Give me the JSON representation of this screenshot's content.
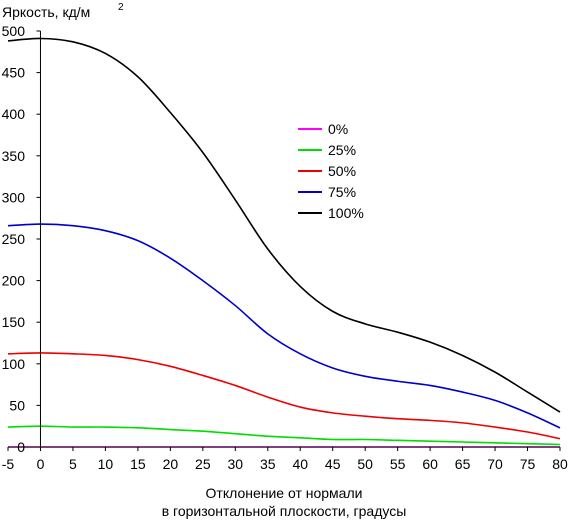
{
  "chart_data": {
    "type": "line",
    "ylabel": "Яркость, кд/м",
    "ylabel_superscript": "2",
    "xlabel_line1": "Отклонение от нормали",
    "xlabel_line2": "в горизонтальной плоскости, градусы",
    "xlim": [
      -5,
      80
    ],
    "ylim": [
      0,
      500
    ],
    "xticks": [
      "-5",
      "0",
      "5",
      "10",
      "15",
      "20",
      "25",
      "30",
      "35",
      "40",
      "45",
      "50",
      "55",
      "60",
      "65",
      "70",
      "75",
      "80"
    ],
    "yticks": [
      "0",
      "50",
      "100",
      "150",
      "200",
      "250",
      "300",
      "350",
      "400",
      "450",
      "500"
    ],
    "grid": false,
    "legend_position": "center-right",
    "series": [
      {
        "name": "0%",
        "color": "#ff00ff",
        "x": [
          -5,
          0,
          10,
          20,
          30,
          40,
          50,
          60,
          70,
          80
        ],
        "y": [
          0,
          0,
          0,
          0,
          0,
          0,
          0,
          0,
          0,
          0
        ]
      },
      {
        "name": "25%",
        "color": "#00dd00",
        "x": [
          -5,
          0,
          5,
          10,
          15,
          20,
          25,
          30,
          35,
          40,
          45,
          50,
          55,
          60,
          65,
          70,
          75,
          80
        ],
        "y": [
          24,
          25,
          24,
          24,
          23,
          21,
          19,
          16,
          13,
          11,
          9,
          9,
          8,
          7,
          6,
          5,
          4,
          3
        ]
      },
      {
        "name": "50%",
        "color": "#ee0000",
        "x": [
          -5,
          0,
          5,
          10,
          15,
          20,
          25,
          30,
          35,
          40,
          45,
          50,
          55,
          60,
          65,
          70,
          75,
          80
        ],
        "y": [
          112,
          113,
          112,
          110,
          105,
          97,
          86,
          74,
          60,
          48,
          41,
          37,
          34,
          32,
          29,
          24,
          18,
          10
        ]
      },
      {
        "name": "75%",
        "color": "#0000cc",
        "x": [
          -5,
          0,
          5,
          10,
          15,
          20,
          25,
          30,
          35,
          40,
          45,
          50,
          55,
          60,
          65,
          70,
          75,
          80
        ],
        "y": [
          266,
          268,
          266,
          260,
          248,
          227,
          200,
          170,
          136,
          112,
          95,
          85,
          79,
          74,
          66,
          56,
          41,
          23
        ]
      },
      {
        "name": "100%",
        "color": "#000000",
        "x": [
          -5,
          0,
          5,
          10,
          15,
          20,
          25,
          30,
          35,
          40,
          45,
          50,
          55,
          60,
          65,
          70,
          75,
          80
        ],
        "y": [
          488,
          491,
          487,
          473,
          445,
          402,
          354,
          297,
          238,
          193,
          163,
          148,
          138,
          126,
          110,
          90,
          66,
          42
        ]
      }
    ]
  }
}
